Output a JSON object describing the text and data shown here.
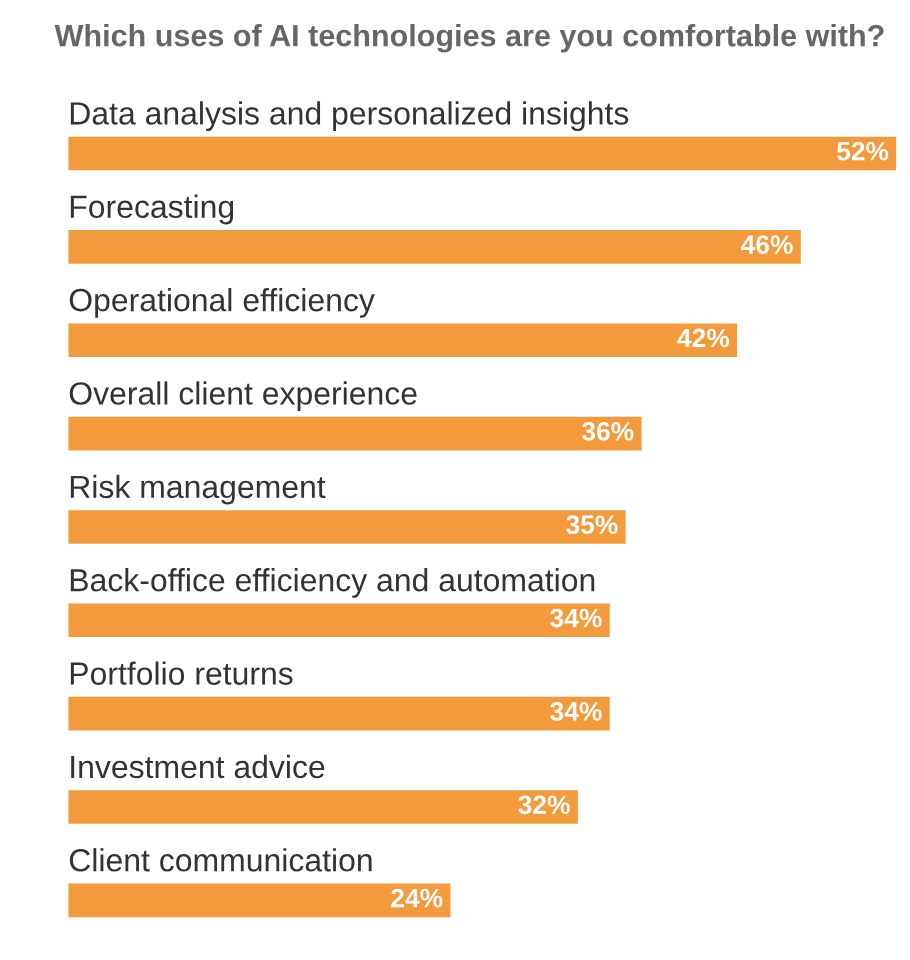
{
  "chart_data": {
    "type": "bar",
    "orientation": "horizontal",
    "title": "Which uses of AI technologies are you comfortable with?",
    "categories": [
      "Data analysis and personalized insights",
      "Forecasting",
      "Operational efficiency",
      "Overall client experience",
      "Risk management",
      "Back-office efficiency and automation",
      "Portfolio returns",
      "Investment advice",
      "Client communication"
    ],
    "values": [
      52,
      46,
      42,
      36,
      35,
      34,
      34,
      32,
      24
    ],
    "value_labels": [
      "52%",
      "46%",
      "42%",
      "36%",
      "35%",
      "34%",
      "34%",
      "32%",
      "24%"
    ],
    "color": "#f39a3c"
  }
}
